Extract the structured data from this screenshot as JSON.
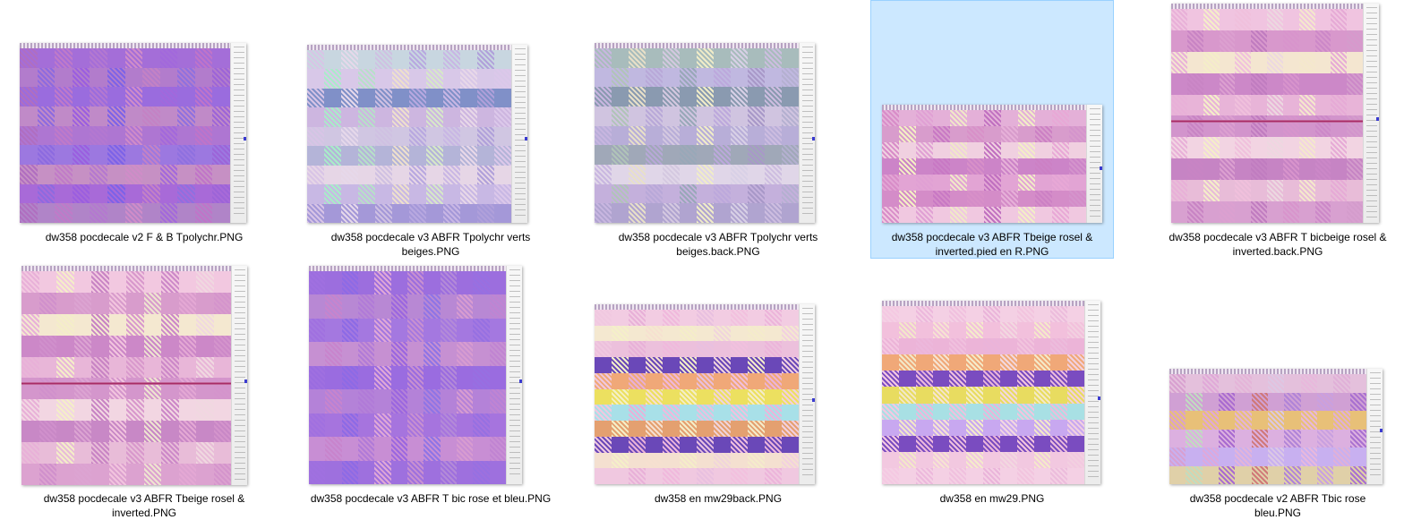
{
  "files": [
    {
      "name": "dw358 pocdecale v2 F & B Tpolychr.PNG",
      "selected": false,
      "cols": [
        "#b06ec0",
        "#8c6ae0",
        "#c07ac8",
        "#9a5ee0",
        "#b478d0",
        "#7c62e8",
        "#d08cc8",
        "#c482c4",
        "#a268dc",
        "#8e70e0",
        "#c074c8",
        "#9c64d8"
      ],
      "rows": [
        "#a46ed8",
        "#b27ccc",
        "#9a6cde",
        "#c08ac8",
        "#ae76d2",
        "#9c78e0",
        "#c690c4",
        "#a86ad8",
        "#b084c8"
      ]
    },
    {
      "name": "dw358 pocdecale v3 ABFR Tpolychr verts beiges.PNG",
      "selected": false,
      "cols": [
        "#d8c4e6",
        "#a8ecc8",
        "#e6d8ea",
        "#b6e0c8",
        "#cfc0e2",
        "#eee0cc",
        "#b8a8e0",
        "#d6e8c8",
        "#c8b6e4",
        "#e8d8e8",
        "#b0a0da",
        "#dcc8ea"
      ],
      "rows": [
        "#c8d6e0",
        "#d8c8e8",
        "#8090c8",
        "#cdb6e0",
        "#d0c6e2",
        "#b4b4d8",
        "#e6d6e6",
        "#c8b8e4",
        "#a498d8"
      ]
    },
    {
      "name": "dw358 pocdecale v3 ABFR Tpolychr verts beiges.back.PNG",
      "selected": false,
      "cols": [
        "#c8b6e0",
        "#b0c4b8",
        "#e8e0c8",
        "#b8a8d8",
        "#d4c8e0",
        "#98a8b8",
        "#f0ecc8",
        "#bca8dc",
        "#d8d0e6",
        "#a898c8",
        "#cdbde0",
        "#b4b0d0"
      ],
      "rows": [
        "#a8bcbc",
        "#c0b8e0",
        "#8a9ab0",
        "#d0c4e0",
        "#b8aed8",
        "#a0a8b8",
        "#e0d6e8",
        "#c4b0dc",
        "#b0a4d0"
      ]
    },
    {
      "name": "dw358 pocdecale v3 ABFR Tbeige rosel & inverted.pied en R.PNG",
      "selected": true,
      "cols": [
        "#d88cc8",
        "#f4f0c4",
        "#e0a0d4",
        "#c878c4",
        "#f0e8c8",
        "#d890c8",
        "#c070c0",
        "#e6b0d8",
        "#f2eec6",
        "#cc80c4",
        "#e8a8d6",
        "#d494cc"
      ],
      "rows": [
        "#e4b0d8",
        "#d89ccc",
        "#f0d0e0",
        "#cc84c8",
        "#e2a4d4",
        "#d48cc8",
        "#f0c8e0"
      ]
    },
    {
      "name": "dw358 pocdecale v3 ABFR T bicbeige rosel & inverted.back.PNG",
      "selected": false,
      "cols": [
        "#e8b0d8",
        "#c884c4",
        "#f4eec8",
        "#dca0d0",
        "#f0c0dc",
        "#c07cc0",
        "#ecd8e0",
        "#d894cc",
        "#f4e8cc",
        "#cc88c8",
        "#e6aad6",
        "#d49ccc"
      ],
      "rows": [
        "#f0c4e0",
        "#d898cc",
        "#f4e6d0",
        "#cc88c8",
        "#e8b4d8",
        "#d294cc",
        "#f2d4e2",
        "#c684c4",
        "#e8bcd8",
        "#d8a0d0"
      ]
    },
    {
      "name": "dw358 pocdecale v3 ABFR Tbeige rosel & inverted.PNG",
      "selected": false,
      "cols": [
        "#e8b0d8",
        "#d090cc",
        "#f4eec8",
        "#dca4d2",
        "#c884c4",
        "#f2c4de",
        "#d898cc",
        "#eee4d0",
        "#cc88c8",
        "#e4a8d4",
        "#f0d8e0",
        "#d494cc"
      ],
      "rows": [
        "#f2c8e0",
        "#d89ccc",
        "#f4e8d0",
        "#cc88c8",
        "#e8b6d8",
        "#d496cc",
        "#f2d6e2",
        "#c888c6",
        "#e8bcd8",
        "#dca2d0"
      ]
    },
    {
      "name": "dw358 pocdecale v3 ABFR T bic rose et bleu.PNG",
      "selected": false,
      "cols": [
        "#a070e0",
        "#c884cc",
        "#8c6ae6",
        "#b07ad8",
        "#e0a8d6",
        "#9a66e0",
        "#c890d0",
        "#8e74e6",
        "#b48ad8",
        "#d89cd0",
        "#9670e2",
        "#c084d2"
      ],
      "rows": [
        "#9c6ede",
        "#b888d4",
        "#a478e0",
        "#c690d2",
        "#9a6ce0",
        "#b482d8",
        "#a674de",
        "#c88ed4",
        "#9e70de"
      ]
    },
    {
      "name": "dw358 en mw29back.PNG",
      "selected": false,
      "cols": [
        "#f0c8e0",
        "#f4f0c8",
        "#e8b0d8",
        "#f6e0d0",
        "#f0b8dc",
        "#f4eec8",
        "#e8c0e0",
        "#f0d4dc",
        "#f2c0de",
        "#f4ecca",
        "#ecb4da",
        "#f2d0e0"
      ],
      "rows": [
        "#f2cce2",
        "#f4e8d0",
        "#ecc0dc",
        "#6a48b8",
        "#f0a878",
        "#ece060",
        "#a8e0e8",
        "#e4a070",
        "#6a48b8",
        "#f4e0d0",
        "#f0c8e0"
      ]
    },
    {
      "name": "dw358 en mw29.PNG",
      "selected": false,
      "cols": [
        "#f4c8e2",
        "#f2e8c8",
        "#ecb8dc",
        "#f6e4d2",
        "#f0c0de",
        "#f4ecca",
        "#eab4da",
        "#f2d8e0",
        "#f2c4de",
        "#f4eac8",
        "#ecbcdc",
        "#f2d0e0"
      ],
      "rows": [
        "#f4d0e4",
        "#f2c0dc",
        "#ecb4d8",
        "#f0a878",
        "#7a4cc0",
        "#e8dc60",
        "#a8e0e4",
        "#c8a8f0",
        "#7a4cc0",
        "#f2c8e0",
        "#f4d0e4"
      ]
    },
    {
      "name": "dw358 pocdecale v2 ABFR Tbic rose bleu.PNG",
      "selected": false,
      "cols": [
        "#d8a0d0",
        "#c0dcc0",
        "#e0a8d8",
        "#a86ad0",
        "#e4b4d8",
        "#d07878",
        "#dcc8e4",
        "#b084d8",
        "#e8b8dc",
        "#c8a0e0",
        "#e0b0d8",
        "#a870d0"
      ],
      "rows": [
        "#e4c0dc",
        "#d0a0d4",
        "#e8c078",
        "#dcb0e0",
        "#c8b0f0",
        "#e0d0a8"
      ]
    }
  ]
}
